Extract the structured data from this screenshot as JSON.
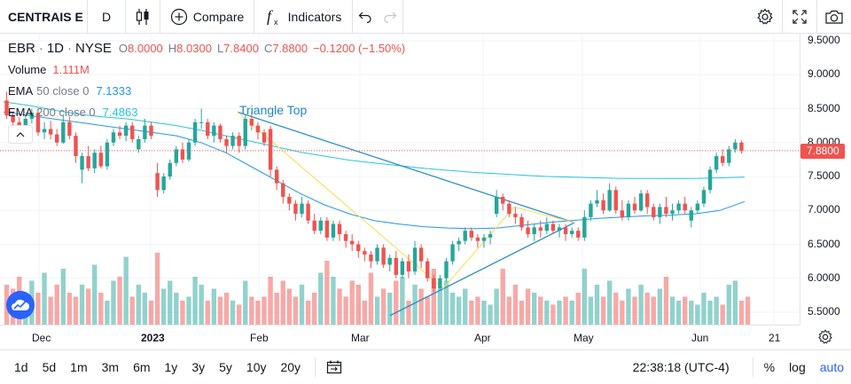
{
  "toolbar": {
    "symbol": "CENTRAIS E",
    "interval": "D",
    "compare_label": "Compare",
    "indicators_label": "Indicators"
  },
  "legend": {
    "symbol": "EBR",
    "interval": "1D",
    "exchange": "NYSE",
    "open_label": "O",
    "open": "8.0000",
    "high_label": "H",
    "high": "8.0300",
    "low_label": "L",
    "low": "7.8400",
    "close_label": "C",
    "close": "7.8800",
    "change": "−0.1200 (−1.50%)",
    "volume_label": "Volume",
    "volume": "1.111M",
    "ema1_label": "EMA",
    "ema1_params": "50 close 0",
    "ema1_value": "7.1333",
    "ema2_label": "EMA",
    "ema2_params": "200 close 0",
    "ema2_value": "7.4863"
  },
  "pattern_label": "Triangle Top",
  "price_axis": [
    "9.5000",
    "9.0000",
    "8.5000",
    "8.0000",
    "7.5000",
    "7.0000",
    "6.5000",
    "6.0000",
    "5.5000"
  ],
  "last_price": "7.8800",
  "time_axis": [
    "Dec",
    "2023",
    "Feb",
    "Mar",
    "Apr",
    "May",
    "Jun",
    "21"
  ],
  "bottom": {
    "ranges": [
      "1d",
      "5d",
      "1m",
      "3m",
      "6m",
      "1y",
      "3y",
      "5y",
      "10y",
      "20y"
    ],
    "clock": "22:38:18 (UTC-4)",
    "percent": "%",
    "log": "log",
    "auto": "auto"
  },
  "colors": {
    "up": "#26a69a",
    "down": "#ef5350",
    "ema50": "#2196f3",
    "ema200": "#26c6da",
    "pattern_blue": "#1e88c8",
    "pattern_yellow": "#f5e04a",
    "accent": "#2962ff"
  },
  "chart_data": {
    "type": "candlestick",
    "ylim": [
      5.3,
      9.6
    ],
    "candles": [
      [
        8.62,
        8.75,
        8.35,
        8.4
      ],
      [
        8.4,
        8.45,
        8.2,
        8.3
      ],
      [
        8.3,
        8.38,
        8.1,
        8.18
      ],
      [
        8.18,
        8.4,
        8.15,
        8.35
      ],
      [
        8.35,
        8.5,
        8.28,
        8.44
      ],
      [
        8.44,
        8.48,
        8.1,
        8.15
      ],
      [
        8.15,
        8.3,
        8.05,
        8.2
      ],
      [
        8.2,
        8.32,
        8.05,
        8.12
      ],
      [
        8.12,
        8.2,
        7.95,
        8.0
      ],
      [
        8.0,
        8.4,
        7.98,
        8.3
      ],
      [
        8.3,
        8.38,
        8.05,
        8.1
      ],
      [
        8.1,
        8.15,
        7.7,
        7.8
      ],
      [
        7.6,
        7.85,
        7.4,
        7.8
      ],
      [
        7.8,
        7.95,
        7.58,
        7.62
      ],
      [
        7.62,
        7.9,
        7.55,
        7.85
      ],
      [
        7.85,
        7.95,
        7.62,
        7.65
      ],
      [
        7.65,
        8.05,
        7.6,
        8.0
      ],
      [
        8.0,
        8.2,
        7.95,
        8.15
      ],
      [
        8.15,
        8.25,
        8.05,
        8.1
      ],
      [
        8.1,
        8.3,
        8.02,
        8.25
      ],
      [
        8.25,
        8.3,
        8.0,
        8.05
      ],
      [
        7.9,
        8.1,
        7.85,
        8.05
      ],
      [
        8.05,
        8.35,
        8.0,
        8.25
      ],
      [
        8.25,
        8.3,
        8.05,
        8.1
      ],
      [
        7.55,
        7.7,
        7.2,
        7.3
      ],
      [
        7.3,
        7.55,
        7.25,
        7.5
      ],
      [
        7.5,
        7.75,
        7.45,
        7.7
      ],
      [
        7.7,
        7.95,
        7.65,
        7.9
      ],
      [
        7.9,
        8.0,
        7.7,
        7.75
      ],
      [
        7.75,
        8.05,
        7.72,
        8.0
      ],
      [
        8.0,
        8.35,
        7.95,
        8.3
      ],
      [
        8.3,
        8.5,
        8.2,
        8.3
      ],
      [
        8.3,
        8.35,
        8.05,
        8.1
      ],
      [
        8.1,
        8.3,
        8.0,
        8.25
      ],
      [
        8.25,
        8.28,
        8.0,
        8.05
      ],
      [
        8.05,
        8.1,
        7.85,
        7.95
      ],
      [
        7.95,
        8.15,
        7.9,
        8.1
      ],
      [
        8.1,
        8.15,
        7.85,
        7.95
      ],
      [
        7.95,
        8.4,
        7.9,
        8.35
      ],
      [
        8.35,
        8.45,
        8.18,
        8.25
      ],
      [
        8.25,
        8.3,
        8.05,
        8.15
      ],
      [
        8.15,
        8.2,
        7.95,
        8.0
      ],
      [
        8.2,
        8.25,
        7.5,
        7.6
      ],
      [
        7.6,
        7.65,
        7.3,
        7.4
      ],
      [
        7.4,
        7.45,
        7.1,
        7.2
      ],
      [
        7.2,
        7.25,
        7.0,
        7.1
      ],
      [
        7.1,
        7.15,
        6.85,
        6.95
      ],
      [
        6.95,
        7.2,
        6.9,
        7.1
      ],
      [
        7.1,
        7.15,
        6.8,
        6.85
      ],
      [
        6.85,
        6.95,
        6.65,
        6.7
      ],
      [
        6.7,
        6.9,
        6.65,
        6.85
      ],
      [
        6.85,
        6.9,
        6.55,
        6.6
      ],
      [
        6.6,
        6.85,
        6.55,
        6.8
      ],
      [
        6.8,
        6.85,
        6.55,
        6.65
      ],
      [
        6.65,
        6.7,
        6.45,
        6.55
      ],
      [
        6.55,
        6.65,
        6.4,
        6.5
      ],
      [
        6.5,
        6.55,
        6.3,
        6.4
      ],
      [
        6.4,
        6.45,
        6.25,
        6.35
      ],
      [
        6.35,
        6.4,
        6.15,
        6.25
      ],
      [
        6.25,
        6.5,
        6.2,
        6.45
      ],
      [
        6.45,
        6.5,
        6.15,
        6.2
      ],
      [
        6.2,
        6.35,
        6.1,
        6.3
      ],
      [
        6.3,
        6.4,
        6.0,
        6.05
      ],
      [
        6.05,
        6.3,
        6.0,
        6.25
      ],
      [
        6.25,
        6.35,
        6.0,
        6.1
      ],
      [
        6.1,
        6.55,
        6.05,
        6.45
      ],
      [
        6.45,
        6.5,
        6.15,
        6.25
      ],
      [
        6.25,
        6.3,
        5.95,
        6.0
      ],
      [
        6.0,
        6.05,
        5.8,
        5.85
      ],
      [
        5.85,
        6.05,
        5.82,
        6.0
      ],
      [
        6.0,
        6.3,
        5.95,
        6.25
      ],
      [
        6.25,
        6.55,
        6.2,
        6.5
      ],
      [
        6.5,
        6.6,
        6.4,
        6.55
      ],
      [
        6.55,
        6.75,
        6.5,
        6.7
      ],
      [
        6.7,
        6.75,
        6.55,
        6.6
      ],
      [
        6.6,
        6.65,
        6.45,
        6.55
      ],
      [
        6.55,
        6.65,
        6.45,
        6.6
      ],
      [
        6.6,
        6.7,
        6.5,
        6.65
      ],
      [
        6.95,
        7.3,
        6.9,
        7.2
      ],
      [
        7.2,
        7.25,
        7.0,
        7.1
      ],
      [
        7.1,
        7.15,
        6.9,
        6.95
      ],
      [
        6.95,
        7.05,
        6.8,
        6.9
      ],
      [
        6.9,
        6.95,
        6.7,
        6.75
      ],
      [
        6.75,
        6.85,
        6.6,
        6.65
      ],
      [
        6.65,
        6.8,
        6.55,
        6.75
      ],
      [
        6.75,
        6.85,
        6.6,
        6.7
      ],
      [
        6.7,
        6.9,
        6.65,
        6.8
      ],
      [
        6.8,
        6.85,
        6.65,
        6.7
      ],
      [
        6.7,
        6.8,
        6.6,
        6.75
      ],
      [
        6.75,
        6.8,
        6.55,
        6.65
      ],
      [
        6.65,
        6.75,
        6.6,
        6.7
      ],
      [
        6.7,
        6.75,
        6.55,
        6.6
      ],
      [
        6.6,
        7.0,
        6.55,
        6.9
      ],
      [
        6.9,
        7.15,
        6.85,
        7.1
      ],
      [
        7.1,
        7.3,
        7.05,
        7.15
      ],
      [
        7.15,
        7.25,
        6.95,
        7.0
      ],
      [
        7.0,
        7.4,
        6.98,
        7.3
      ],
      [
        7.3,
        7.35,
        6.95,
        7.0
      ],
      [
        7.0,
        7.15,
        6.85,
        6.9
      ],
      [
        6.9,
        7.15,
        6.85,
        7.1
      ],
      [
        7.1,
        7.2,
        6.95,
        7.0
      ],
      [
        7.0,
        7.3,
        6.98,
        7.25
      ],
      [
        7.25,
        7.3,
        6.95,
        7.05
      ],
      [
        7.05,
        7.1,
        6.85,
        6.9
      ],
      [
        6.9,
        7.1,
        6.8,
        7.05
      ],
      [
        7.05,
        7.2,
        6.9,
        6.95
      ],
      [
        6.95,
        7.1,
        6.85,
        7.0
      ],
      [
        7.0,
        7.15,
        6.95,
        7.1
      ],
      [
        7.1,
        7.2,
        6.95,
        7.0
      ],
      [
        6.85,
        7.05,
        6.75,
        7.0
      ],
      [
        7.0,
        7.15,
        6.95,
        7.1
      ],
      [
        7.1,
        7.35,
        7.05,
        7.3
      ],
      [
        7.3,
        7.65,
        7.25,
        7.6
      ],
      [
        7.6,
        7.85,
        7.55,
        7.8
      ],
      [
        7.8,
        7.9,
        7.65,
        7.7
      ],
      [
        7.7,
        7.95,
        7.65,
        7.9
      ],
      [
        7.9,
        8.05,
        7.85,
        8.0
      ],
      [
        8.0,
        8.03,
        7.84,
        7.88
      ]
    ],
    "ema50": [
      8.45,
      8.4,
      8.35,
      8.3,
      8.25,
      8.2,
      8.15,
      8.1,
      8.0,
      7.85,
      7.65,
      7.45,
      7.25,
      7.08,
      6.95,
      6.85,
      6.8,
      6.76,
      6.74,
      6.73,
      6.74,
      6.78,
      6.82,
      6.85,
      6.88,
      6.9,
      6.92,
      6.93,
      6.95,
      7.0,
      7.13
    ],
    "ema200": [
      8.6,
      8.55,
      8.48,
      8.42,
      8.38,
      8.35,
      8.3,
      8.25,
      8.18,
      8.1,
      8.02,
      7.94,
      7.86,
      7.8,
      7.74,
      7.7,
      7.66,
      7.62,
      7.59,
      7.56,
      7.54,
      7.52,
      7.5,
      7.49,
      7.48,
      7.47,
      7.47,
      7.47,
      7.47,
      7.48,
      7.49
    ],
    "volume": [
      0.5,
      0.45,
      0.6,
      0.3,
      0.55,
      0.4,
      0.65,
      0.35,
      0.5,
      0.7,
      0.4,
      0.35,
      0.5,
      0.45,
      0.75,
      0.4,
      0.3,
      0.55,
      0.6,
      0.85,
      0.35,
      0.5,
      0.4,
      0.3,
      0.9,
      0.45,
      0.55,
      0.4,
      0.3,
      0.35,
      0.6,
      0.5,
      0.3,
      0.45,
      0.35,
      0.4,
      0.3,
      0.25,
      0.55,
      0.35,
      0.3,
      0.35,
      0.6,
      0.4,
      0.55,
      0.45,
      0.35,
      0.5,
      0.3,
      0.4,
      0.65,
      0.8,
      0.6,
      0.45,
      0.35,
      0.55,
      0.5,
      0.3,
      0.65,
      0.35,
      0.45,
      0.4,
      0.55,
      0.6,
      0.3,
      0.5,
      0.45,
      0.35,
      0.7,
      0.45,
      0.55,
      0.4,
      0.35,
      0.45,
      0.3,
      0.35,
      0.3,
      0.25,
      0.45,
      0.7,
      0.35,
      0.5,
      0.3,
      0.45,
      0.4,
      0.35,
      0.3,
      0.25,
      0.3,
      0.35,
      0.3,
      0.4,
      0.7,
      0.35,
      0.5,
      0.35,
      0.55,
      0.4,
      0.3,
      0.45,
      0.35,
      0.5,
      0.4,
      0.35,
      0.45,
      0.6,
      0.35,
      0.3,
      0.35,
      0.3,
      0.25,
      0.4,
      0.3,
      0.35,
      0.25,
      0.5,
      0.55,
      0.3,
      0.35
    ]
  }
}
